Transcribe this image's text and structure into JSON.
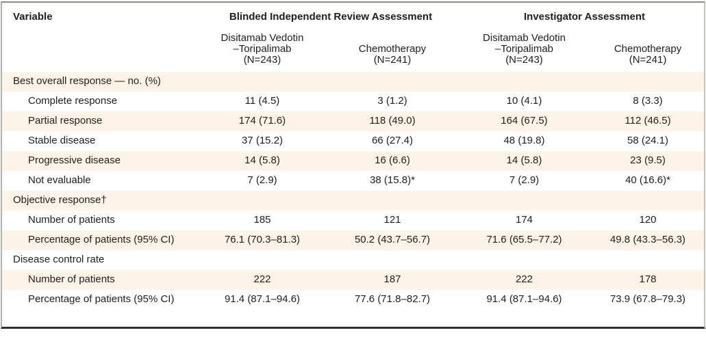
{
  "colors": {
    "stripe": "#fdf4e7",
    "text": "#201d1b",
    "rule_top": "#8f8c86",
    "rule_bottom": "#32312f"
  },
  "table": {
    "variable_header": "Variable",
    "groups": [
      {
        "label": "Blinded Independent Review Assessment",
        "columns": [
          "Disitamab Vedotin\n–Toripalimab\n(N=243)",
          "Chemotherapy\n(N=241)"
        ]
      },
      {
        "label": "Investigator Assessment",
        "columns": [
          "Disitamab Vedotin\n–Toripalimab\n(N=243)",
          "Chemotherapy\n(N=241)"
        ]
      }
    ],
    "rows": [
      {
        "label": "Best overall response — no. (%)",
        "indent": false,
        "values": [
          "",
          "",
          "",
          ""
        ]
      },
      {
        "label": "Complete response",
        "indent": true,
        "values": [
          "11 (4.5)",
          "3 (1.2)",
          "10 (4.1)",
          "8 (3.3)"
        ]
      },
      {
        "label": "Partial response",
        "indent": true,
        "values": [
          "174 (71.6)",
          "118 (49.0)",
          "164 (67.5)",
          "112 (46.5)"
        ]
      },
      {
        "label": "Stable disease",
        "indent": true,
        "values": [
          "37 (15.2)",
          "66 (27.4)",
          "48 (19.8)",
          "58 (24.1)"
        ]
      },
      {
        "label": "Progressive disease",
        "indent": true,
        "values": [
          "14 (5.8)",
          "16 (6.6)",
          "14 (5.8)",
          "23 (9.5)"
        ]
      },
      {
        "label": "Not evaluable",
        "indent": true,
        "values": [
          "7 (2.9)",
          "38 (15.8)*",
          "7 (2.9)",
          "40 (16.6)*"
        ]
      },
      {
        "label": "Objective response†",
        "indent": false,
        "values": [
          "",
          "",
          "",
          ""
        ]
      },
      {
        "label": "Number of patients",
        "indent": true,
        "values": [
          "185",
          "121",
          "174",
          "120"
        ]
      },
      {
        "label": "Percentage of patients (95% CI)",
        "indent": true,
        "values": [
          "76.1 (70.3–81.3)",
          "50.2 (43.7–56.7)",
          "71.6 (65.5–77.2)",
          "49.8 (43.3–56.3)"
        ]
      },
      {
        "label": "Disease control rate",
        "indent": false,
        "values": [
          "",
          "",
          "",
          ""
        ]
      },
      {
        "label": "Number of patients",
        "indent": true,
        "values": [
          "222",
          "187",
          "222",
          "178"
        ]
      },
      {
        "label": "Percentage of patients (95% CI)",
        "indent": true,
        "values": [
          "91.4 (87.1–94.6)",
          "77.6 (71.8–82.7)",
          "91.4 (87.1–94.6)",
          "73.9 (67.8–79.3)"
        ]
      }
    ]
  }
}
